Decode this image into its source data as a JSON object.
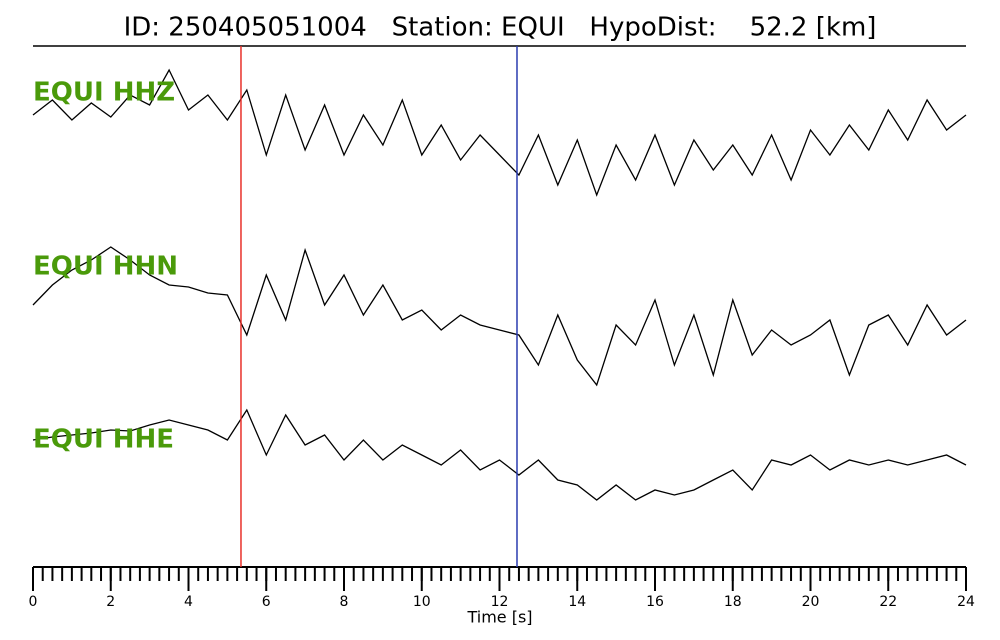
{
  "chart_data": {
    "type": "line",
    "title": "ID: 250405051004   Station: EQUI   HypoDist:    52.2 [km]",
    "xlabel": "Time [s]",
    "xlim": [
      0,
      24
    ],
    "xticks": [
      0,
      2,
      4,
      6,
      8,
      10,
      12,
      14,
      16,
      18,
      20,
      22,
      24
    ],
    "xminor_step": 0.25,
    "ylim": [
      -80,
      80
    ],
    "label_color": "#4a9a0a",
    "markers": [
      {
        "x": 5.35,
        "color": "#e8302a"
      },
      {
        "x": 12.45,
        "color": "#2a3cb0"
      }
    ],
    "x": [
      0,
      0.5,
      1,
      1.5,
      2,
      2.5,
      3,
      3.5,
      4,
      4.5,
      5,
      5.5,
      6,
      6.5,
      7,
      7.5,
      8,
      8.5,
      9,
      9.5,
      10,
      10.5,
      11,
      11.5,
      12,
      12.5,
      13,
      13.5,
      14,
      14.5,
      15,
      15.5,
      16,
      16.5,
      17,
      17.5,
      18,
      18.5,
      19,
      19.5,
      20,
      20.5,
      21,
      21.5,
      22,
      22.5,
      23,
      23.5,
      24
    ],
    "series": [
      {
        "name": "EQUI HHZ",
        "color": "#000000",
        "values": [
          10,
          25,
          5,
          22,
          8,
          30,
          20,
          55,
          15,
          30,
          5,
          35,
          -30,
          30,
          -25,
          20,
          -30,
          10,
          -20,
          25,
          -30,
          0,
          -35,
          -10,
          -30,
          -50,
          -10,
          -60,
          -15,
          -70,
          -20,
          -55,
          -10,
          -60,
          -15,
          -45,
          -20,
          -50,
          -10,
          -55,
          -5,
          -30,
          0,
          -25,
          15,
          -15,
          25,
          -5,
          10
        ]
      },
      {
        "name": "EQUI HHN",
        "color": "#000000",
        "values": [
          0,
          20,
          35,
          45,
          58,
          45,
          30,
          20,
          18,
          12,
          10,
          -30,
          30,
          -15,
          55,
          0,
          30,
          -10,
          20,
          -15,
          -5,
          -25,
          -10,
          -20,
          -25,
          -30,
          -60,
          -10,
          -55,
          -80,
          -20,
          -40,
          5,
          -60,
          -10,
          -70,
          5,
          -50,
          -25,
          -40,
          -30,
          -15,
          -70,
          -20,
          -10,
          -40,
          0,
          -30,
          -15
        ]
      },
      {
        "name": "EQUI HHE",
        "color": "#000000",
        "values": [
          15,
          18,
          20,
          22,
          25,
          24,
          30,
          35,
          30,
          25,
          15,
          45,
          0,
          40,
          10,
          20,
          -5,
          15,
          -5,
          10,
          0,
          -10,
          5,
          -15,
          -5,
          -20,
          -5,
          -25,
          -30,
          -45,
          -30,
          -45,
          -35,
          -40,
          -35,
          -25,
          -15,
          -35,
          -5,
          -10,
          0,
          -15,
          -5,
          -10,
          -5,
          -10,
          -5,
          0,
          -10
        ]
      }
    ]
  }
}
